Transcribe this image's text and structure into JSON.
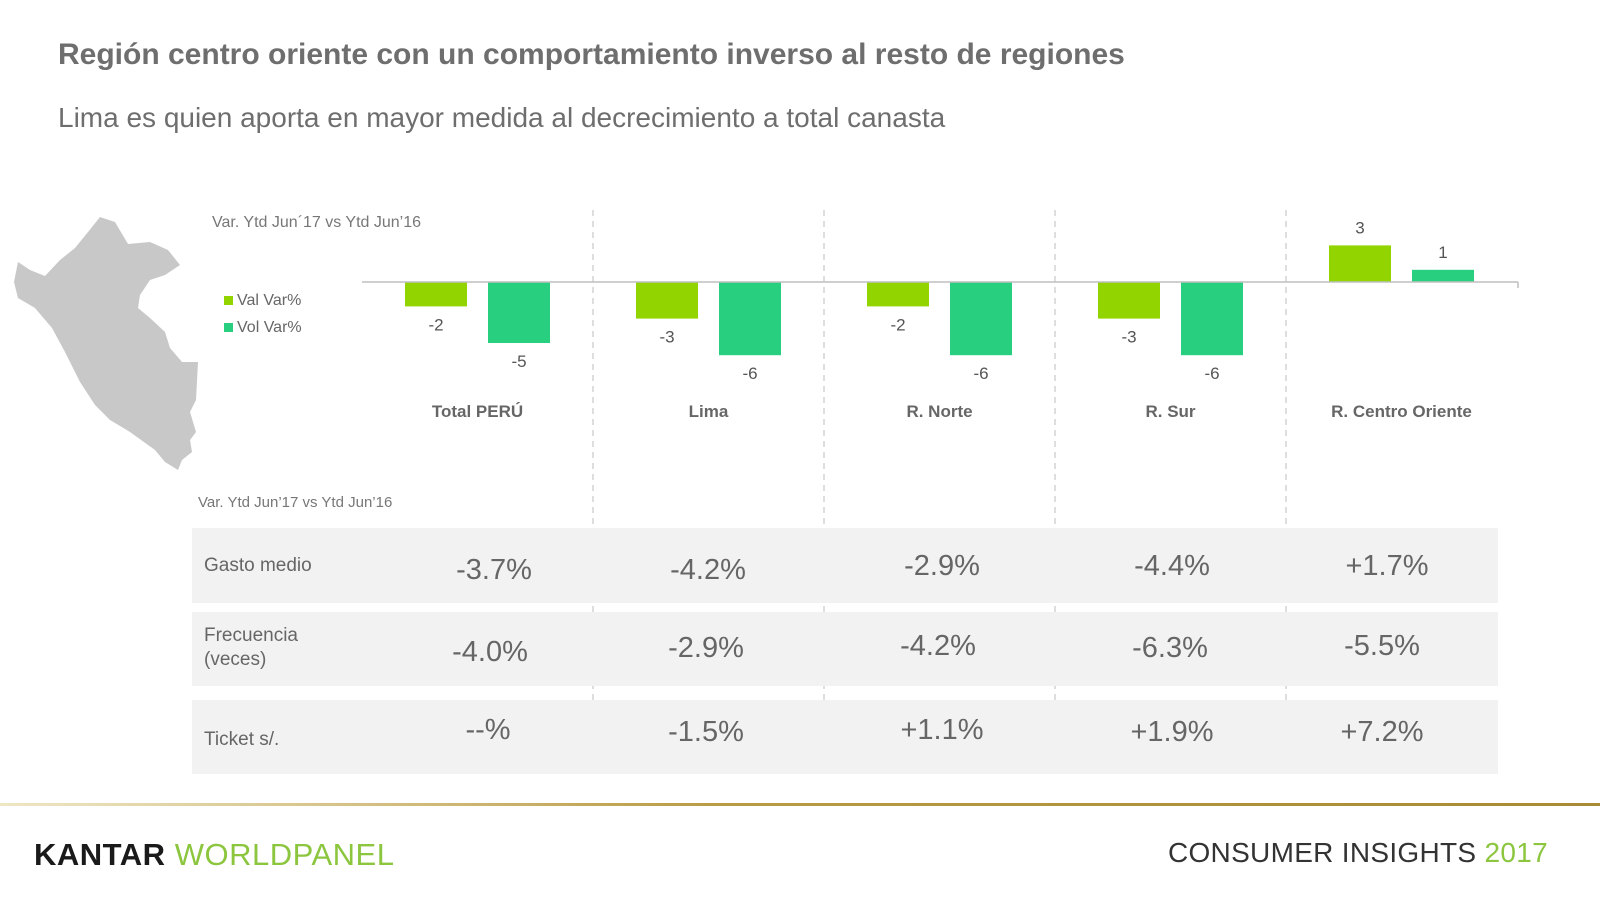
{
  "title": "Región centro oriente con un comportamiento inverso al resto de regiones",
  "subtitle": "Lima es quien aporta en mayor medida al decrecimiento a total canasta",
  "chart_data": {
    "type": "bar",
    "note": "Var. Ytd Jun´17 vs Ytd Jun’16",
    "categories": [
      "Total PERÚ",
      "Lima",
      "R. Norte",
      "R. Sur",
      "R. Centro Oriente"
    ],
    "series": [
      {
        "name": "Val Var%",
        "color": "#92d400",
        "values": [
          -2,
          -3,
          -2,
          -3,
          3
        ]
      },
      {
        "name": "Vol Var%",
        "color": "#27cf7f",
        "values": [
          -5,
          -6,
          -6,
          -6,
          1
        ]
      }
    ],
    "ylim": [
      -8,
      4
    ],
    "legend_position": "left"
  },
  "table": {
    "note": "Var. Ytd Jun’17 vs Ytd Jun’16",
    "rows": [
      {
        "label": "Gasto medio",
        "values": [
          "-3.7%",
          "-4.2%",
          "-2.9%",
          "-4.4%",
          "+1.7%"
        ]
      },
      {
        "label": "Frecuencia (veces)",
        "values": [
          "-4.0%",
          "-2.9%",
          "-4.2%",
          "-6.3%",
          "-5.5%"
        ]
      },
      {
        "label": "Ticket s/.",
        "values": [
          "--%",
          "-1.5%",
          "+1.1%",
          "+1.9%",
          "+7.2%"
        ]
      }
    ]
  },
  "footer": {
    "brand_kantar": "KANTAR",
    "brand_worldpanel": "WORLDPANEL",
    "insights": "CONSUMER INSIGHTS",
    "year": "2017"
  },
  "colors": {
    "accent_green": "#8cc63f",
    "map_gray": "#c8c8c8"
  },
  "icons": {
    "map": "peru-map-icon"
  }
}
